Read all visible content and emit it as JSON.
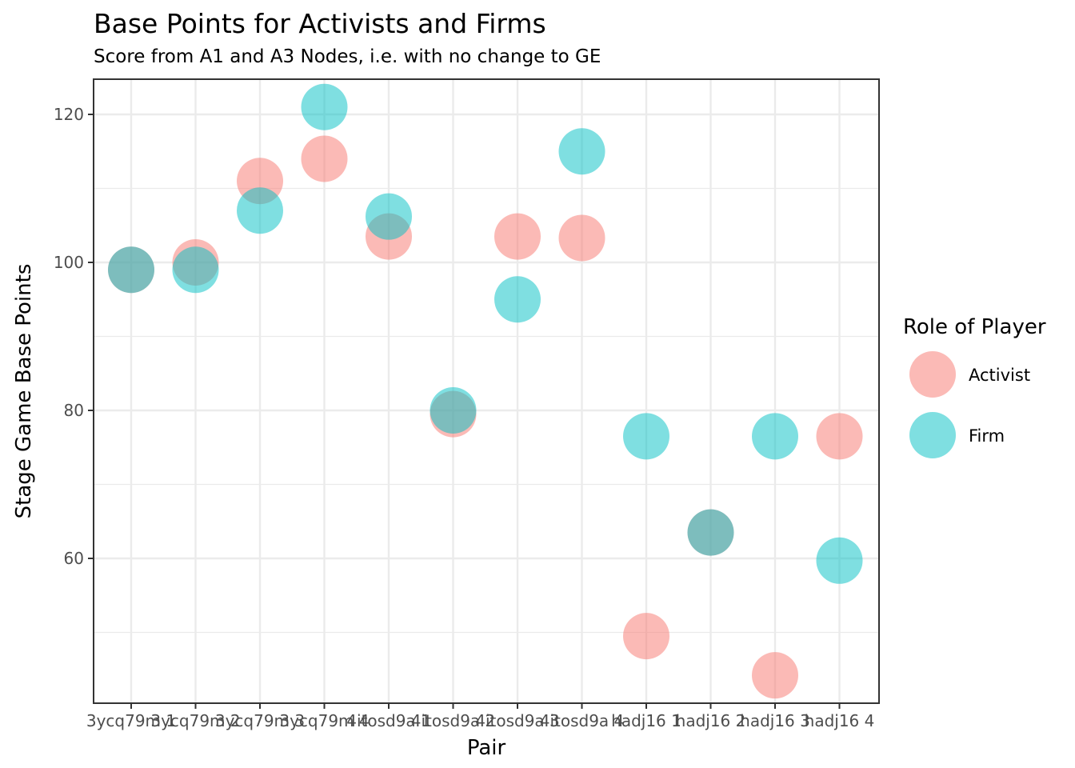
{
  "chart_data": {
    "type": "scatter",
    "title": "Base Points for Activists and Firms",
    "subtitle": "Score from A1 and A3 Nodes, i.e. with no change to GE",
    "xlabel": "Pair",
    "ylabel": "Stage Game Base Points",
    "categories": [
      "3ycq79m 1",
      "3ycq79m 2",
      "3ycq79m 3",
      "3ycq79m 4",
      "4itosd9a 1",
      "4itosd9a 2",
      "4itosd9a 3",
      "4itosd9a 4",
      "hadj16 1",
      "hadj16 2",
      "hadj16 3",
      "hadj16 4"
    ],
    "ylim": [
      40,
      125
    ],
    "y_ticks": [
      60,
      80,
      100,
      120
    ],
    "grid": true,
    "legend": {
      "title": "Role of Player",
      "position": "right"
    },
    "series": [
      {
        "name": "Activist",
        "color": "#F8766D",
        "values": [
          99,
          100,
          111,
          114,
          103.5,
          79.5,
          103.5,
          103.3,
          49.5,
          63.5,
          44.2,
          76.5
        ]
      },
      {
        "name": "Firm",
        "color": "#00BFC4",
        "values": [
          99,
          99,
          107,
          121,
          106.2,
          80,
          95,
          115,
          76.5,
          63.5,
          76.5,
          59.7
        ]
      }
    ]
  }
}
